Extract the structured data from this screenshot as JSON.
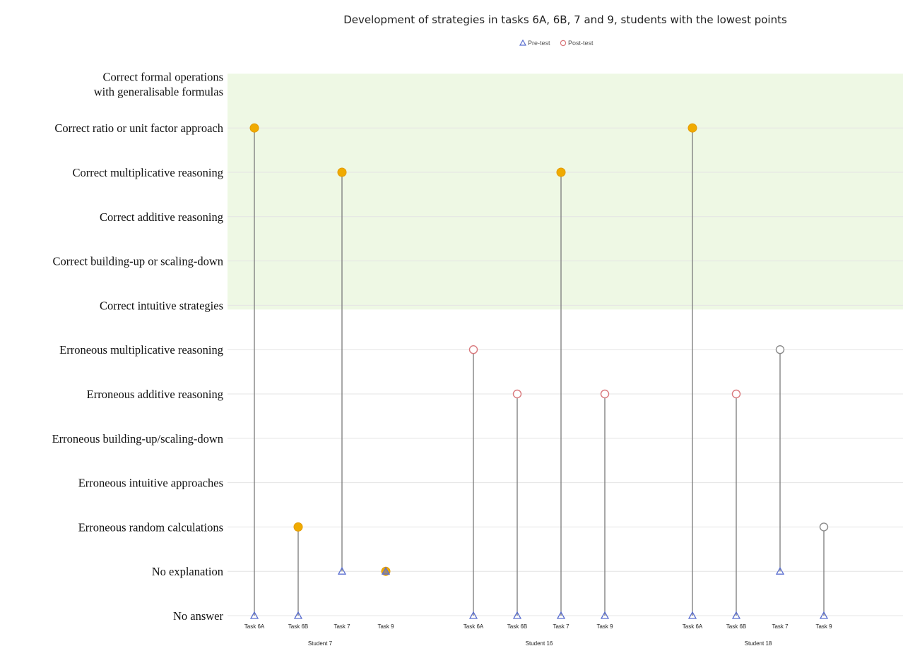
{
  "chart_data": {
    "type": "scatter",
    "title": "Development of strategies in tasks 6A, 6B, 7 and 9, students with the lowest points",
    "legend": {
      "placement": "top-center",
      "entries": [
        "Pre-test",
        "Post-test"
      ]
    },
    "categories_y": [
      "No answer",
      "No explanation",
      "Erroneous random calculations",
      "Erroneous intuitive approaches",
      "Erroneous building-up/scaling-down",
      "Erroneous additive reasoning",
      "Erroneous multiplicative reasoning",
      "Correct intuitive strategies",
      "Correct building-up or scaling-down",
      "Correct additive reasoning",
      "Correct multiplicative reasoning",
      "Correct ratio or unit factor approach",
      "Correct formal operations with generalisable formulas"
    ],
    "y_label_lines": {
      "12": [
        "Correct formal operations",
        "with generalisable formulas"
      ]
    },
    "correct_band": {
      "from_index": 7,
      "to_index": 12,
      "color": "#eef8e4"
    },
    "groups": [
      {
        "label": "Student 7",
        "tasks": [
          {
            "task": "Task 6A",
            "pre": 0,
            "post": 11,
            "post_marker": "filled"
          },
          {
            "task": "Task 6B",
            "pre": 0,
            "post": 2,
            "post_marker": "filled"
          },
          {
            "task": "Task 7",
            "pre": 1,
            "post": 10,
            "post_marker": "filled"
          },
          {
            "task": "Task 9",
            "pre": 1,
            "post": 1,
            "post_marker": "filled"
          }
        ]
      },
      {
        "label": "Student 16",
        "tasks": [
          {
            "task": "Task 6A",
            "pre": 0,
            "post": 6,
            "post_marker": "open"
          },
          {
            "task": "Task 6B",
            "pre": 0,
            "post": 5,
            "post_marker": "open"
          },
          {
            "task": "Task 7",
            "pre": 0,
            "post": 10,
            "post_marker": "filled"
          },
          {
            "task": "Task 9",
            "pre": 0,
            "post": 5,
            "post_marker": "open"
          }
        ]
      },
      {
        "label": "Student 18",
        "tasks": [
          {
            "task": "Task 6A",
            "pre": 0,
            "post": 11,
            "post_marker": "filled"
          },
          {
            "task": "Task 6B",
            "pre": 0,
            "post": 5,
            "post_marker": "open"
          },
          {
            "task": "Task 7",
            "pre": 1,
            "post": 6,
            "post_marker": "open_gray"
          },
          {
            "task": "Task 9",
            "pre": 0,
            "post": 2,
            "post_marker": "open_gray"
          }
        ]
      }
    ],
    "colors": {
      "pre": "#5b6fd0",
      "post_filled": "#f0ab00",
      "post_open": "#d9787c",
      "post_open_gray": "#8a8a8a",
      "stem": "#7a7a7a"
    },
    "grid": true
  }
}
